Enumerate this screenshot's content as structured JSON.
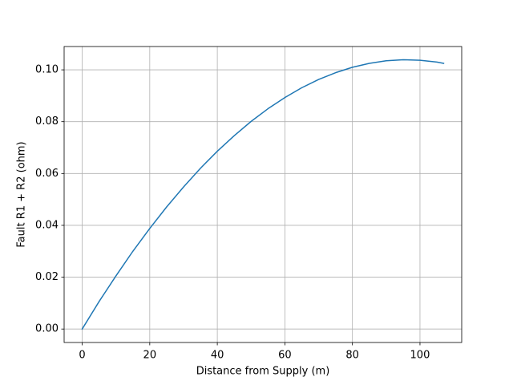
{
  "chart_data": {
    "type": "line",
    "xlabel": "Distance from Supply (m)",
    "ylabel": "Fault R1 + R2 (ohm)",
    "x": [
      0,
      5,
      10,
      15,
      20,
      25,
      30,
      35,
      40,
      45,
      50,
      55,
      60,
      65,
      70,
      75,
      80,
      85,
      90,
      95,
      100,
      105,
      107
    ],
    "values": [
      0,
      0.0106,
      0.0205,
      0.03,
      0.0388,
      0.0471,
      0.0548,
      0.062,
      0.0686,
      0.0746,
      0.0801,
      0.085,
      0.0893,
      0.0931,
      0.0963,
      0.0989,
      0.101,
      0.1025,
      0.1035,
      0.1039,
      0.1037,
      0.103,
      0.1025
    ],
    "color": "#1f77b4",
    "xlim": [
      -5.35,
      112.35
    ],
    "xticks": [
      0,
      20,
      40,
      60,
      80,
      100
    ],
    "ylim": [
      -0.0052,
      0.109
    ],
    "yticks": [
      {
        "value": 0,
        "label": "0.00"
      },
      {
        "value": 0.02,
        "label": "0.02"
      },
      {
        "value": 0.04,
        "label": "0.04"
      },
      {
        "value": 0.06,
        "label": "0.06"
      },
      {
        "value": 0.08,
        "label": "0.08"
      },
      {
        "value": 0.1,
        "label": "0.10"
      }
    ],
    "grid": true
  }
}
